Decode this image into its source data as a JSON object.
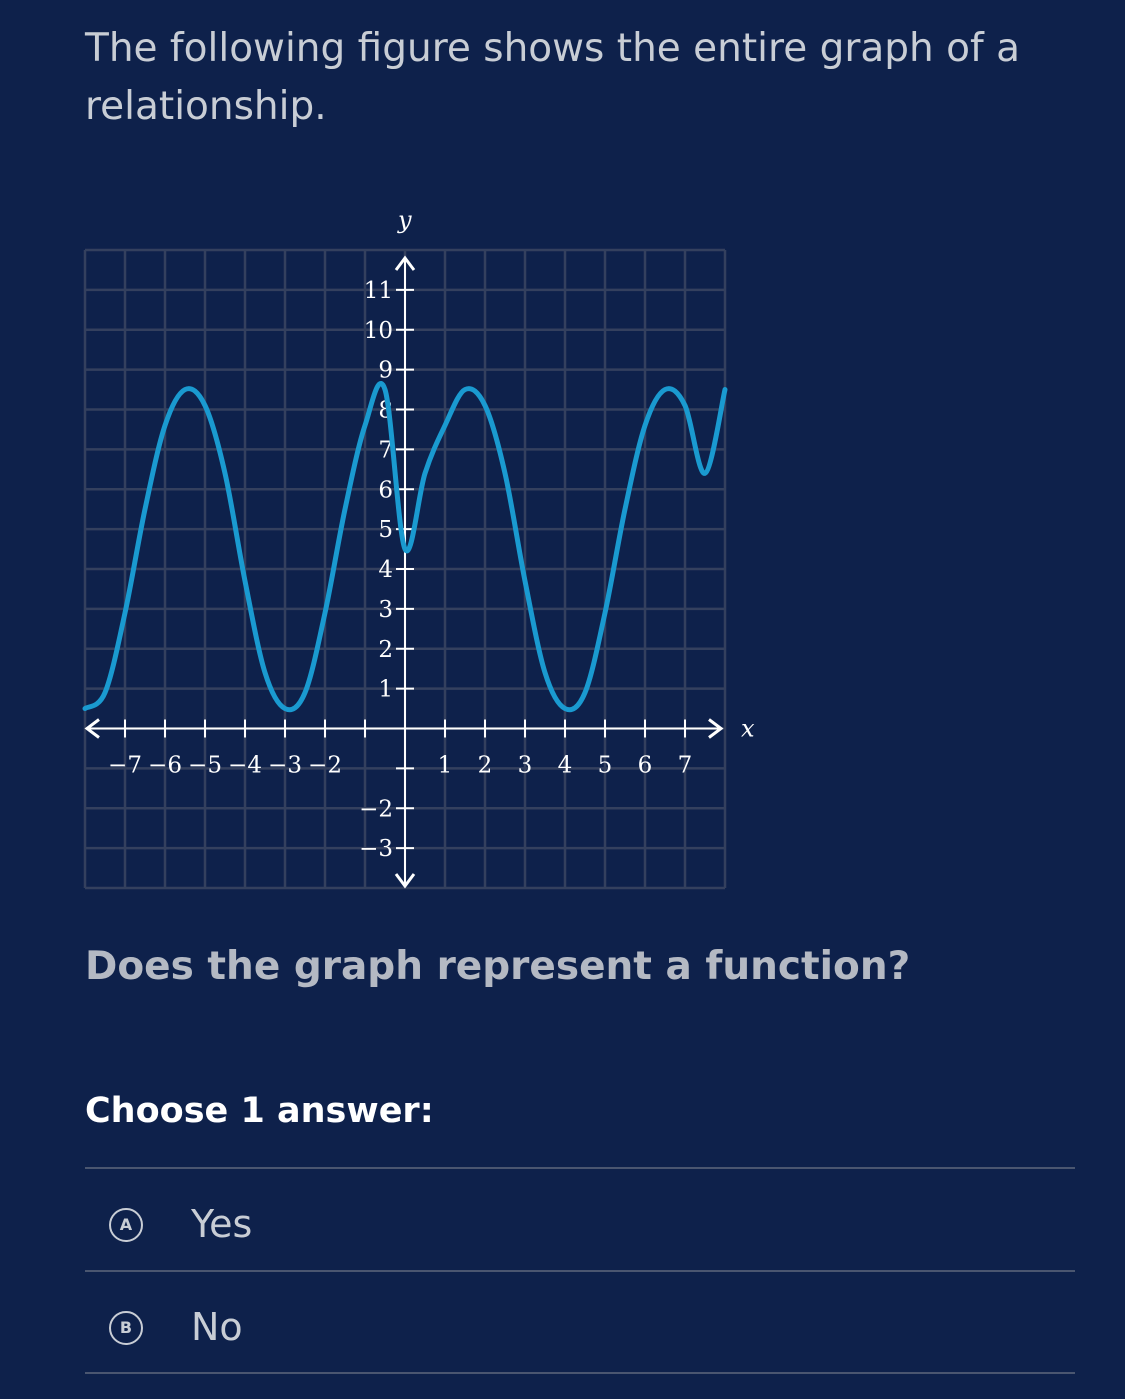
{
  "prompt": "The following figure shows the entire graph of a relationship.",
  "question": "Does the graph represent a function?",
  "choose_label": "Choose 1 answer:",
  "choices": [
    {
      "letter": "A",
      "label": "Yes"
    },
    {
      "letter": "B",
      "label": "No"
    }
  ],
  "colors": {
    "background": "#0e214b",
    "curve": "#1a9ad0",
    "grid": "#34405e",
    "axis": "#ffffff"
  },
  "graph": {
    "x_axis_label": "x",
    "y_axis_label": "y",
    "x_ticks": [
      -7,
      -6,
      -5,
      -4,
      -3,
      -2,
      1,
      2,
      3,
      4,
      5,
      6,
      7
    ],
    "y_ticks": [
      11,
      10,
      9,
      8,
      7,
      6,
      5,
      4,
      3,
      2,
      1,
      -2,
      -3
    ],
    "x_range": [
      -8,
      8
    ],
    "y_range": [
      -4,
      12
    ]
  },
  "chart_data": {
    "type": "line",
    "series": [
      {
        "x": [
          -8,
          -7.5,
          -7,
          -6.5,
          -6,
          -5.5,
          -5,
          -4.5,
          -4,
          -3.5,
          -3,
          -2.5,
          -2,
          -1.5,
          -1,
          -0.5,
          0,
          0.5,
          1,
          1.5,
          2,
          2.5,
          3,
          3.5,
          4,
          4.5,
          5,
          5.5,
          6,
          6.5,
          7,
          7.5,
          8
        ],
        "y": [
          0.5,
          0.9,
          2.9,
          5.5,
          7.6,
          8.5,
          8.1,
          6.4,
          3.7,
          1.4,
          0.5,
          0.9,
          2.9,
          5.5,
          7.6,
          8.5,
          4.5,
          6.4,
          7.6,
          8.5,
          8.1,
          6.4,
          3.7,
          1.4,
          0.5,
          0.9,
          2.9,
          5.5,
          7.6,
          8.5,
          8.1,
          6.4,
          8.5
        ]
      }
    ],
    "xlabel": "x",
    "ylabel": "y",
    "xlim": [
      -8,
      8
    ],
    "ylim": [
      -4,
      12
    ],
    "grid": true
  }
}
